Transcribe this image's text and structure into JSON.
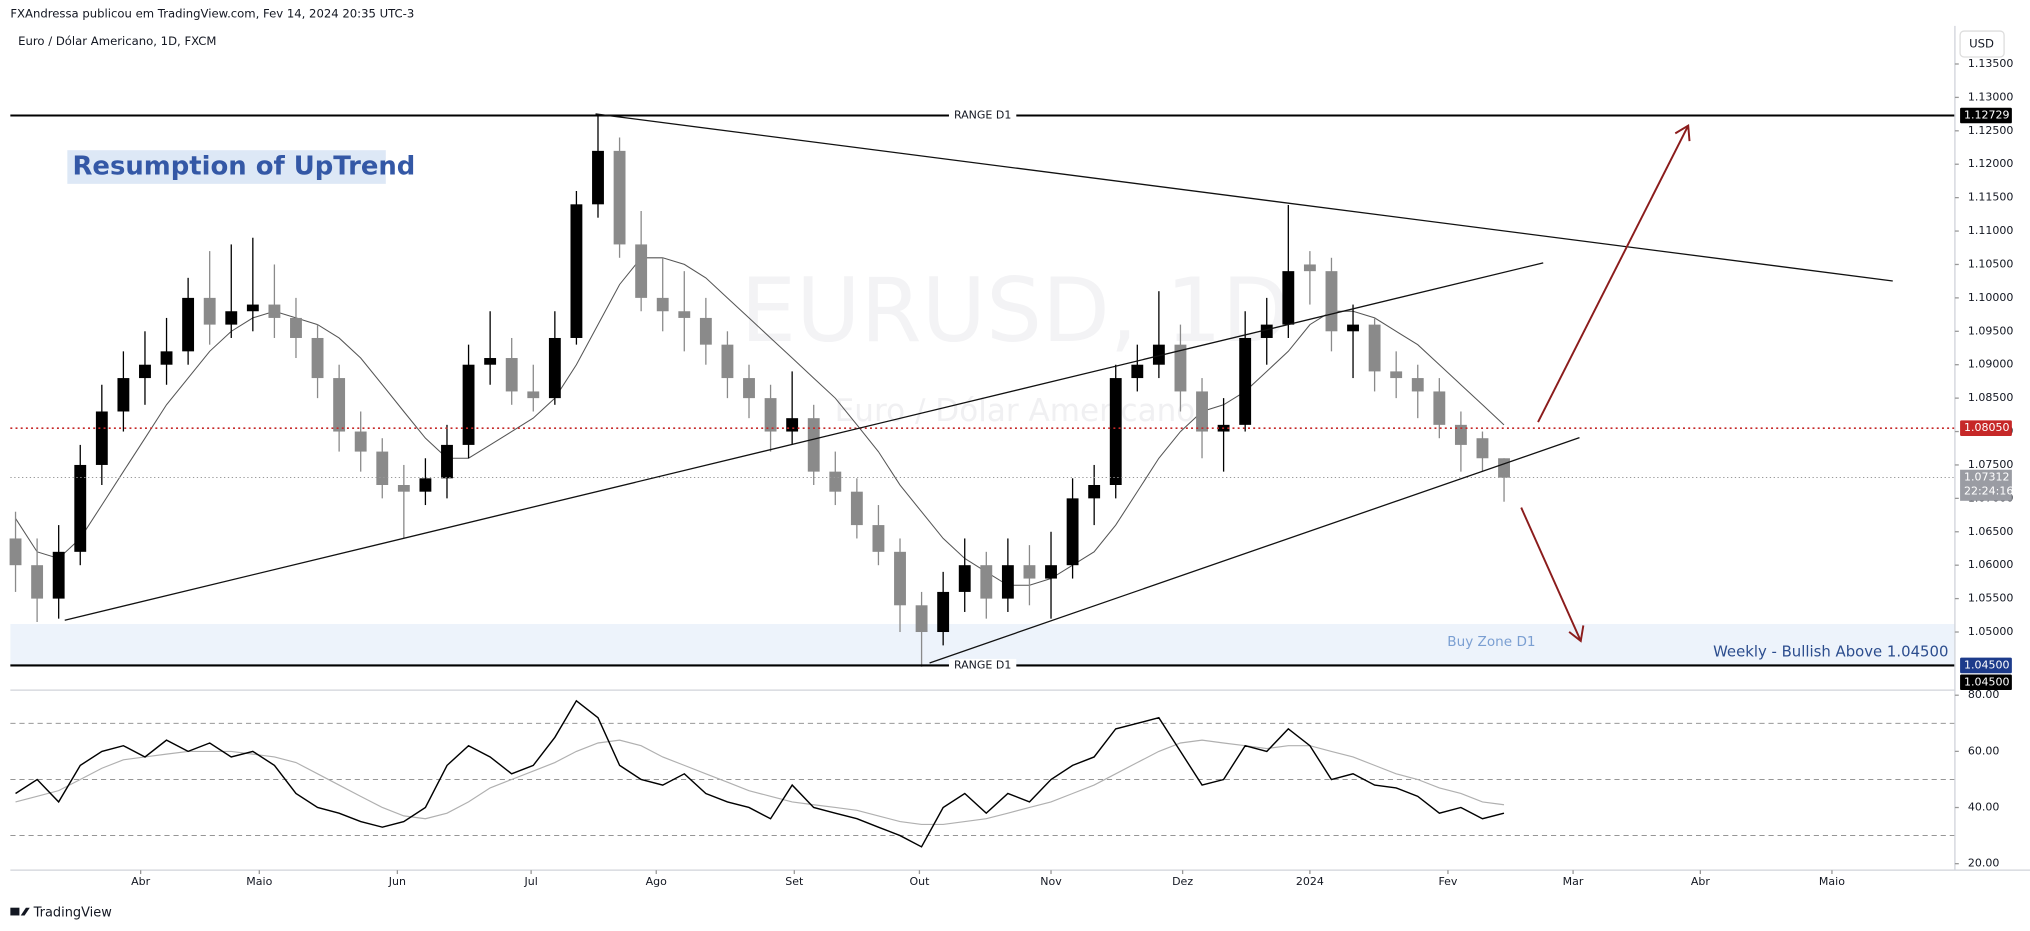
{
  "header": {
    "published": "FXAndressa publicou em TradingView.com, Fev 14, 2024 20:35 UTC-3",
    "symbol": "Euro / Dólar Americano, 1D, FXCM",
    "currency": "USD",
    "watermark": "EURUSD, 1D",
    "watermark_sub": "Euro / Dólar Americano"
  },
  "footer": {
    "brand": "TradingView"
  },
  "annotations": {
    "title": "Resumption of UpTrend"
  },
  "chart_data": [
    {
      "type": "candlestick",
      "up_color": "#000000",
      "down_color": "#8a8a8a",
      "grid": false,
      "xlim": [
        -0.24,
        89.9
      ],
      "ylim": [
        1.0413,
        1.1407
      ],
      "yticks": [
        {
          "value": 1.135,
          "label": "1.13500"
        },
        {
          "value": 1.13,
          "label": "1.13000"
        },
        {
          "value": 1.125,
          "label": "1.12500"
        },
        {
          "value": 1.12,
          "label": "1.12000"
        },
        {
          "value": 1.115,
          "label": "1.11500"
        },
        {
          "value": 1.11,
          "label": "1.11000"
        },
        {
          "value": 1.105,
          "label": "1.10500"
        },
        {
          "value": 1.1,
          "label": "1.10000"
        },
        {
          "value": 1.095,
          "label": "1.09500"
        },
        {
          "value": 1.09,
          "label": "1.09000"
        },
        {
          "value": 1.085,
          "label": "1.08500"
        },
        {
          "value": 1.08,
          "label": "1.08000"
        },
        {
          "value": 1.075,
          "label": "1.07500"
        },
        {
          "value": 1.07,
          "label": "1.07000"
        },
        {
          "value": 1.065,
          "label": "1.06500"
        },
        {
          "value": 1.06,
          "label": "1.06000"
        },
        {
          "value": 1.055,
          "label": "1.05500"
        },
        {
          "value": 1.05,
          "label": "1.05000"
        }
      ],
      "open": [
        1.064,
        1.06,
        1.055,
        1.062,
        1.075,
        1.083,
        1.088,
        1.09,
        1.092,
        1.1,
        1.096,
        1.098,
        1.099,
        1.097,
        1.094,
        1.088,
        1.08,
        1.077,
        1.072,
        1.071,
        1.073,
        1.078,
        1.09,
        1.091,
        1.086,
        1.085,
        1.094,
        1.114,
        1.122,
        1.108,
        1.1,
        1.098,
        1.097,
        1.093,
        1.088,
        1.085,
        1.08,
        1.082,
        1.074,
        1.071,
        1.066,
        1.062,
        1.054,
        1.05,
        1.056,
        1.06,
        1.055,
        1.06,
        1.058,
        1.06,
        1.07,
        1.072,
        1.088,
        1.09,
        1.093,
        1.086,
        1.08,
        1.081,
        1.094,
        1.096,
        1.105,
        1.104,
        1.095,
        1.096,
        1.089,
        1.088,
        1.086,
        1.081,
        1.079,
        1.076
      ],
      "high": [
        1.068,
        1.064,
        1.066,
        1.078,
        1.087,
        1.092,
        1.095,
        1.097,
        1.103,
        1.107,
        1.108,
        1.109,
        1.105,
        1.1,
        1.096,
        1.09,
        1.083,
        1.079,
        1.075,
        1.076,
        1.081,
        1.093,
        1.098,
        1.094,
        1.09,
        1.098,
        1.116,
        1.1273,
        1.124,
        1.113,
        1.106,
        1.104,
        1.1,
        1.095,
        1.09,
        1.087,
        1.089,
        1.084,
        1.077,
        1.073,
        1.069,
        1.064,
        1.056,
        1.059,
        1.064,
        1.062,
        1.064,
        1.063,
        1.065,
        1.073,
        1.075,
        1.09,
        1.093,
        1.101,
        1.096,
        1.088,
        1.085,
        1.098,
        1.1,
        1.1139,
        1.107,
        1.106,
        1.099,
        1.097,
        1.092,
        1.09,
        1.088,
        1.083,
        1.08,
        1.076
      ],
      "low": [
        1.056,
        1.0515,
        1.052,
        1.06,
        1.072,
        1.08,
        1.084,
        1.087,
        1.09,
        1.093,
        1.094,
        1.095,
        1.094,
        1.091,
        1.085,
        1.077,
        1.074,
        1.07,
        1.064,
        1.069,
        1.07,
        1.076,
        1.087,
        1.084,
        1.083,
        1.084,
        1.093,
        1.112,
        1.106,
        1.098,
        1.095,
        1.092,
        1.09,
        1.085,
        1.082,
        1.077,
        1.078,
        1.072,
        1.069,
        1.064,
        1.06,
        1.05,
        1.0448,
        1.048,
        1.053,
        1.052,
        1.053,
        1.054,
        1.052,
        1.058,
        1.066,
        1.07,
        1.086,
        1.088,
        1.083,
        1.076,
        1.074,
        1.08,
        1.09,
        1.094,
        1.099,
        1.092,
        1.088,
        1.086,
        1.085,
        1.082,
        1.079,
        1.074,
        1.074,
        1.0695
      ],
      "close": [
        1.06,
        1.055,
        1.062,
        1.075,
        1.083,
        1.088,
        1.09,
        1.092,
        1.1,
        1.096,
        1.098,
        1.099,
        1.097,
        1.094,
        1.088,
        1.08,
        1.077,
        1.072,
        1.071,
        1.073,
        1.078,
        1.09,
        1.091,
        1.086,
        1.085,
        1.094,
        1.114,
        1.122,
        1.108,
        1.1,
        1.098,
        1.097,
        1.093,
        1.088,
        1.085,
        1.08,
        1.082,
        1.074,
        1.071,
        1.066,
        1.062,
        1.054,
        1.05,
        1.056,
        1.06,
        1.055,
        1.06,
        1.058,
        1.06,
        1.07,
        1.072,
        1.088,
        1.09,
        1.093,
        1.086,
        1.08,
        1.081,
        1.094,
        1.096,
        1.104,
        1.104,
        1.095,
        1.096,
        1.089,
        1.088,
        1.086,
        1.081,
        1.078,
        1.076,
        1.0731
      ],
      "sma": [
        1.067,
        1.062,
        1.061,
        1.064,
        1.069,
        1.074,
        1.079,
        1.084,
        1.088,
        1.092,
        1.095,
        1.097,
        1.098,
        1.097,
        1.096,
        1.094,
        1.091,
        1.087,
        1.083,
        1.079,
        1.076,
        1.076,
        1.078,
        1.08,
        1.082,
        1.085,
        1.09,
        1.096,
        1.102,
        1.106,
        1.106,
        1.105,
        1.103,
        1.1,
        1.097,
        1.094,
        1.091,
        1.088,
        1.085,
        1.081,
        1.077,
        1.072,
        1.068,
        1.064,
        1.061,
        1.059,
        1.057,
        1.057,
        1.058,
        1.06,
        1.062,
        1.066,
        1.071,
        1.076,
        1.08,
        1.083,
        1.084,
        1.086,
        1.089,
        1.092,
        1.096,
        1.098,
        1.098,
        1.097,
        1.095,
        1.093,
        1.09,
        1.087,
        1.084,
        1.081
      ],
      "sma_color": "#555555",
      "levels": [
        {
          "value": 1.12729,
          "label": "1.12729",
          "name": "RANGE D1",
          "color": "#000000",
          "style": "solid"
        },
        {
          "value": 1.0805,
          "label": "1.08050",
          "color": "#c62828",
          "style": "dotted"
        },
        {
          "value": 1.045,
          "label": "1.04500",
          "name": "RANGE D1",
          "color": "#000000",
          "style": "solid",
          "label_color": "#1d3b8b"
        }
      ],
      "last_price": {
        "value": 1.07312,
        "label": "1.07312",
        "countdown": "22:24:16"
      },
      "buy_zone": {
        "range": [
          1.045,
          1.0512
        ],
        "label": "Buy Zone D1",
        "color": "#edf3fb"
      },
      "weekly_note": {
        "text": "Weekly - Bullish Above 1.04500",
        "value": 1.045,
        "label": "1.04500"
      }
    },
    {
      "type": "line",
      "xlim": [
        -0.24,
        89.9
      ],
      "ylim": [
        17.7,
        81.8
      ],
      "yticks": [
        {
          "value": 80,
          "label": "80.00"
        },
        {
          "value": 60,
          "label": "60.00"
        },
        {
          "value": 40,
          "label": "40.00"
        },
        {
          "value": 20,
          "label": "20.00"
        }
      ],
      "bands": [
        70,
        50,
        30
      ],
      "xticks": [
        {
          "value": 5.8,
          "label": "Abr"
        },
        {
          "value": 11.3,
          "label": "Maio"
        },
        {
          "value": 17.7,
          "label": "Jun"
        },
        {
          "value": 23.9,
          "label": "Jul"
        },
        {
          "value": 29.7,
          "label": "Ago"
        },
        {
          "value": 36.1,
          "label": "Set"
        },
        {
          "value": 41.9,
          "label": "Out"
        },
        {
          "value": 48.0,
          "label": "Nov"
        },
        {
          "value": 54.1,
          "label": "Dez"
        },
        {
          "value": 60.0,
          "label": "2024"
        },
        {
          "value": 66.4,
          "label": "Fev"
        },
        {
          "value": 72.2,
          "label": "Mar"
        },
        {
          "value": 78.1,
          "label": "Abr"
        },
        {
          "value": 84.2,
          "label": "Maio"
        }
      ],
      "series": [
        {
          "color": "#000000",
          "values": [
            45,
            50,
            42,
            55,
            60,
            62,
            58,
            64,
            60,
            63,
            58,
            60,
            55,
            45,
            40,
            38,
            35,
            33,
            35,
            40,
            55,
            62,
            58,
            52,
            55,
            65,
            78,
            72,
            55,
            50,
            48,
            52,
            45,
            42,
            40,
            36,
            48,
            40,
            38,
            36,
            33,
            30,
            26,
            40,
            45,
            38,
            45,
            42,
            50,
            55,
            58,
            68,
            70,
            72,
            60,
            48,
            50,
            62,
            60,
            68,
            62,
            50,
            52,
            48,
            47,
            44,
            38,
            40,
            36,
            38
          ]
        },
        {
          "color": "#b0b0b0",
          "values": [
            42,
            44,
            46,
            50,
            54,
            57,
            58,
            59,
            60,
            60,
            60,
            59,
            58,
            56,
            52,
            48,
            44,
            40,
            37,
            36,
            38,
            42,
            47,
            50,
            53,
            56,
            60,
            63,
            64,
            62,
            58,
            55,
            52,
            49,
            46,
            44,
            42,
            41,
            40,
            39,
            37,
            35,
            34,
            34,
            35,
            36,
            38,
            40,
            42,
            45,
            48,
            52,
            56,
            60,
            63,
            64,
            63,
            62,
            61,
            62,
            62,
            60,
            58,
            55,
            52,
            50,
            47,
            45,
            42,
            41
          ]
        }
      ]
    }
  ]
}
